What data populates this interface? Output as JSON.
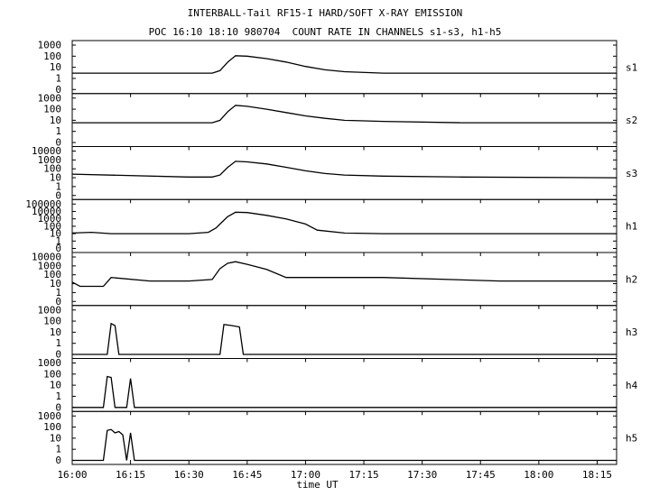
{
  "chart_data": {
    "type": "line",
    "title": "INTERBALL-Tail RF15-I HARD/SOFT X-RAY EMISSION",
    "subtitle": "POC 16:10 18:10 980704  COUNT RATE IN CHANNELS s1-s3, h1-h5",
    "xlabel": "time UT",
    "x_range": [
      "16:00",
      "18:20"
    ],
    "x_ticks": [
      "16:00",
      "16:15",
      "16:30",
      "16:45",
      "17:00",
      "17:15",
      "17:30",
      "17:45",
      "18:00",
      "18:15"
    ],
    "y_scale": "log",
    "grid": false,
    "panels": [
      {
        "name": "s1",
        "y_ticks": [
          "1000",
          "100",
          "10",
          "1",
          "0"
        ],
        "series": {
          "t": [
            "16:00",
            "16:30",
            "16:36",
            "16:38",
            "16:40",
            "16:42",
            "16:45",
            "16:50",
            "16:55",
            "17:00",
            "17:05",
            "17:10",
            "17:20",
            "18:20"
          ],
          "count": [
            3,
            3,
            3,
            5,
            30,
            110,
            100,
            60,
            30,
            12,
            6,
            4,
            3,
            3
          ]
        }
      },
      {
        "name": "s2",
        "y_ticks": [
          "1000",
          "100",
          "10",
          "1",
          "0"
        ],
        "series": {
          "t": [
            "16:00",
            "16:30",
            "16:36",
            "16:38",
            "16:40",
            "16:42",
            "16:45",
            "16:50",
            "16:55",
            "17:00",
            "17:05",
            "17:10",
            "17:20",
            "17:40",
            "18:20"
          ],
          "count": [
            6,
            6,
            6,
            10,
            60,
            220,
            180,
            100,
            50,
            25,
            15,
            10,
            8,
            6,
            6
          ]
        }
      },
      {
        "name": "s3",
        "y_ticks": [
          "10000",
          "1000",
          "100",
          "10",
          "1",
          "0"
        ],
        "series": {
          "t": [
            "16:00",
            "16:30",
            "16:36",
            "16:38",
            "16:40",
            "16:42",
            "16:45",
            "16:50",
            "16:55",
            "17:00",
            "17:05",
            "17:10",
            "17:20",
            "17:40",
            "18:20"
          ],
          "count": [
            25,
            12,
            12,
            20,
            150,
            700,
            600,
            350,
            150,
            60,
            30,
            20,
            15,
            12,
            10
          ]
        }
      },
      {
        "name": "h1",
        "y_ticks": [
          "100000",
          "10000",
          "1000",
          "100",
          "10",
          "1",
          "0"
        ],
        "series": {
          "t": [
            "16:00",
            "16:05",
            "16:10",
            "16:20",
            "16:30",
            "16:35",
            "16:37",
            "16:38",
            "16:40",
            "16:42",
            "16:45",
            "16:50",
            "16:55",
            "17:00",
            "17:03",
            "17:10",
            "17:20",
            "18:20"
          ],
          "count": [
            12,
            15,
            10,
            10,
            10,
            15,
            60,
            200,
            2000,
            8000,
            7000,
            3000,
            1000,
            200,
            30,
            12,
            10,
            10
          ]
        }
      },
      {
        "name": "h2",
        "y_ticks": [
          "10000",
          "1000",
          "100",
          "10",
          "1",
          "0"
        ],
        "series": {
          "t": [
            "16:00",
            "16:02",
            "16:08",
            "16:10",
            "16:20",
            "16:30",
            "16:36",
            "16:38",
            "16:40",
            "16:42",
            "16:45",
            "16:50",
            "16:55",
            "17:00",
            "17:20",
            "17:50",
            "18:20"
          ],
          "count": [
            15,
            5,
            5,
            50,
            20,
            20,
            30,
            500,
            2000,
            3000,
            1500,
            400,
            50,
            50,
            50,
            20,
            20
          ]
        }
      },
      {
        "name": "h3",
        "y_ticks": [
          "1000",
          "100",
          "10",
          "1",
          "0"
        ],
        "series": {
          "t": [
            "16:00",
            "16:09",
            "16:10",
            "16:11",
            "16:12",
            "16:38",
            "16:39",
            "16:41",
            "16:43",
            "16:44",
            "18:20"
          ],
          "count": [
            0,
            0,
            60,
            40,
            0,
            0,
            50,
            40,
            30,
            0,
            0
          ]
        }
      },
      {
        "name": "h4",
        "y_ticks": [
          "1000",
          "100",
          "10",
          "1",
          "0"
        ],
        "series": {
          "t": [
            "16:00",
            "16:08",
            "16:09",
            "16:10",
            "16:11",
            "16:14",
            "16:15",
            "16:16",
            "18:20"
          ],
          "count": [
            0,
            0,
            60,
            50,
            0,
            0,
            40,
            0,
            0
          ]
        }
      },
      {
        "name": "h5",
        "y_ticks": [
          "1000",
          "100",
          "10",
          "1",
          "0"
        ],
        "series": {
          "t": [
            "16:00",
            "16:08",
            "16:09",
            "16:10",
            "16:11",
            "16:12",
            "16:13",
            "16:14",
            "16:15",
            "16:16",
            "18:20"
          ],
          "count": [
            0,
            0,
            50,
            60,
            30,
            40,
            20,
            0,
            30,
            0,
            0
          ]
        }
      }
    ]
  }
}
